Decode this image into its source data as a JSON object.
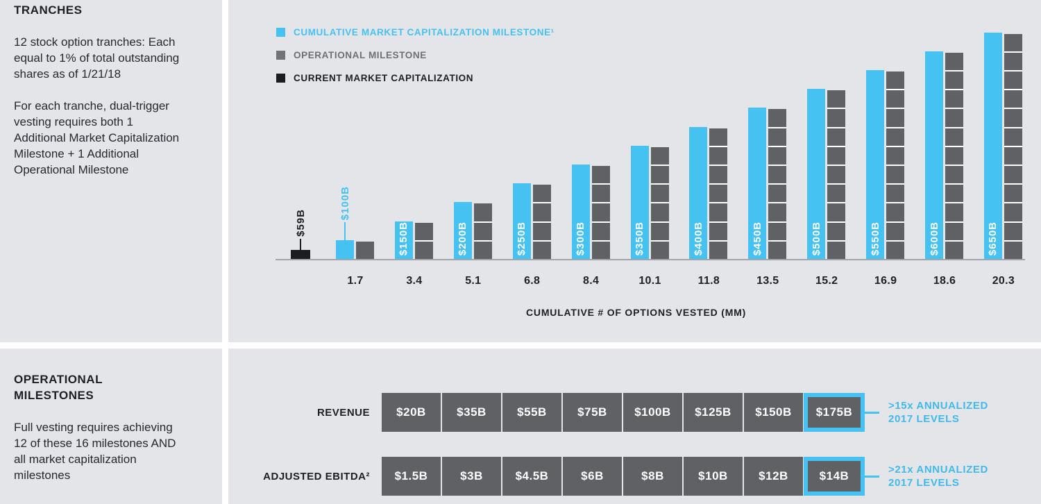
{
  "colors": {
    "panel_bg": "#e4e5e9",
    "accent_cyan": "#45c2f1",
    "callout_cyan": "#3fbaeb",
    "bar_gray": "#5f6165",
    "legend_gray_swatch": "#717378",
    "legend_gray_text": "#6e7074",
    "current_black": "#1b1d20",
    "axis_gray": "#a2a4a9"
  },
  "panels": {
    "tranches": {
      "title": "TRANCHES",
      "paragraphs": [
        "12 stock option tranches: Each equal to 1% of total outstanding shares as of 1/21/18",
        "For each tranche, dual-trigger vesting requires both 1 Additional Market Capitalization Milestone + 1 Additional Operational Milestone"
      ]
    },
    "operational": {
      "title": "OPERATIONAL MILESTONES",
      "paragraphs": [
        "Full vesting requires achieving 12 of these 16 milestones AND all market capitalization milestones"
      ]
    }
  },
  "chart_data": {
    "type": "bar",
    "title": "",
    "xlabel": "CUMULATIVE # OF OPTIONS VESTED (MM)",
    "ylabel": "",
    "ylim": [
      0,
      650
    ],
    "grid": false,
    "legend_position": "top-left",
    "x": [
      1.7,
      3.4,
      5.1,
      6.8,
      8.4,
      10.1,
      11.8,
      13.5,
      15.2,
      16.9,
      18.6,
      20.3
    ],
    "legend": [
      {
        "label": "CUMULATIVE MARKET CAPITALIZATION MILESTONE¹",
        "swatch": "#45c2f1",
        "text_color": "#45c2f1"
      },
      {
        "label": "OPERATIONAL MILESTONE",
        "swatch": "#717378",
        "text_color": "#6e7074"
      },
      {
        "label": "CURRENT MARKET CAPITALIZATION",
        "swatch": "#1b1d20",
        "text_color": "#1d1f23"
      }
    ],
    "series": [
      {
        "name": "CUMULATIVE MARKET CAPITALIZATION MILESTONE",
        "values": [
          100,
          150,
          200,
          250,
          300,
          350,
          400,
          450,
          500,
          550,
          600,
          650
        ],
        "labels": [
          "$100B",
          "$150B",
          "$200B",
          "$250B",
          "$300B",
          "$350B",
          "$400B",
          "$450B",
          "$500B",
          "$550B",
          "$600B",
          "$650B"
        ]
      },
      {
        "name": "OPERATIONAL MILESTONE",
        "segment_counts": [
          1,
          2,
          3,
          4,
          5,
          6,
          7,
          8,
          9,
          10,
          11,
          12
        ]
      },
      {
        "name": "CURRENT MARKET CAPITALIZATION",
        "value": 59,
        "label": "$59B"
      }
    ]
  },
  "milestone_table": {
    "rows": [
      {
        "label": "REVENUE",
        "cells": [
          "$20B",
          "$35B",
          "$55B",
          "$75B",
          "$100B",
          "$125B",
          "$150B",
          "$175B"
        ],
        "highlight_index": 7,
        "callout": [
          ">15x ANNUALIZED",
          "2017 LEVELS"
        ]
      },
      {
        "label": "ADJUSTED EBITDA²",
        "cells": [
          "$1.5B",
          "$3B",
          "$4.5B",
          "$6B",
          "$8B",
          "$10B",
          "$12B",
          "$14B"
        ],
        "highlight_index": 7,
        "callout": [
          ">21x ANNUALIZED",
          "2017 LEVELS"
        ]
      }
    ]
  }
}
